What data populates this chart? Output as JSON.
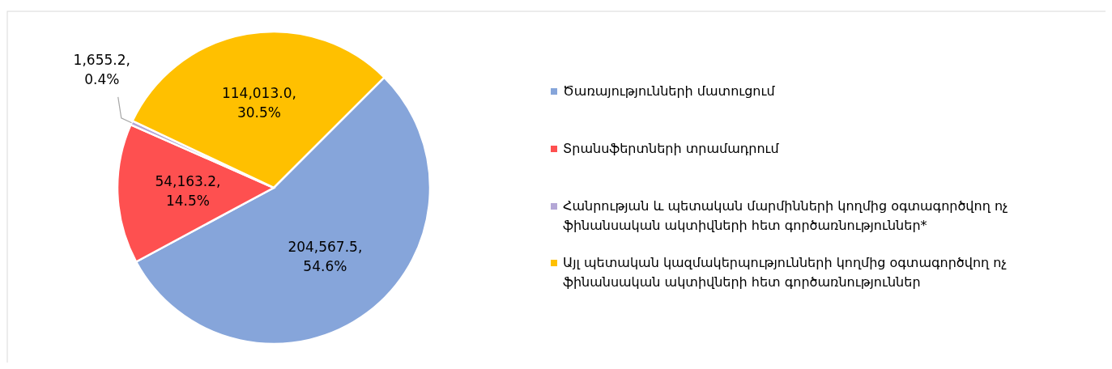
{
  "chart_data": {
    "type": "pie",
    "categories": [
      "Ծառայությունների մատուցում",
      "Տրանսֆերտների տրամադրում",
      "Հանրության և պետական մարմինների կողմից օգտագործվող ոչ ֆինանսական ակտիվների հետ գործառնություններ*",
      "Այլ պետական կազմակերպությունների կողմից օգտագործվող ոչ ֆինանսական ակտիվների հետ գործառնություններ"
    ],
    "values": [
      204567.5,
      54163.2,
      1655.2,
      114013.0
    ],
    "colors": [
      "#86a5da",
      "#fe5050",
      "#b4a7d6",
      "#ffc000"
    ],
    "value_labels": [
      "204,567.5, 54.6%",
      "54,163.2, 14.5%",
      "1,655.2, 0.4%",
      "114,013.0, 30.5%"
    ],
    "legend": "right"
  }
}
